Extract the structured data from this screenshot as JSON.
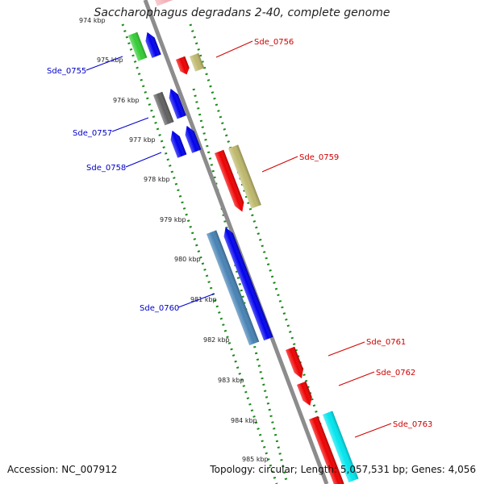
{
  "title": "Saccharophagus degradans 2-40, complete genome",
  "accession_text": "Accession: NC_007912",
  "topology_text": "Topology: circular; Length: 5,057,531 bp; Genes: 4,056",
  "ticks": [
    "974 kbp",
    "975 kbp",
    "976 kbp",
    "977 kbp",
    "978 kbp",
    "979 kbp",
    "980 kbp",
    "981 kbp",
    "982 kbp",
    "983 kbp",
    "984 kbp",
    "985 kbp"
  ],
  "colors": {
    "backbone": "#8c8c8c",
    "forward_label": "#0000c8",
    "reverse_label": "#d00000",
    "blue": "#0000ee",
    "red": "#ee0000",
    "green": "#33cc33",
    "gray": "#606060",
    "khaki": "#bdb76b",
    "steel": "#4682b4",
    "cyan": "#00e5ee",
    "dots": "#1a8a1a"
  },
  "genes": [
    {
      "name": "Sde_0755",
      "strand": "forward"
    },
    {
      "name": "Sde_0756",
      "strand": "reverse"
    },
    {
      "name": "Sde_0757",
      "strand": "forward"
    },
    {
      "name": "Sde_0758",
      "strand": "forward"
    },
    {
      "name": "Sde_0759",
      "strand": "reverse"
    },
    {
      "name": "Sde_0760",
      "strand": "forward"
    },
    {
      "name": "Sde_0761",
      "strand": "reverse"
    },
    {
      "name": "Sde_0762",
      "strand": "reverse"
    },
    {
      "name": "Sde_0763",
      "strand": "reverse"
    }
  ]
}
